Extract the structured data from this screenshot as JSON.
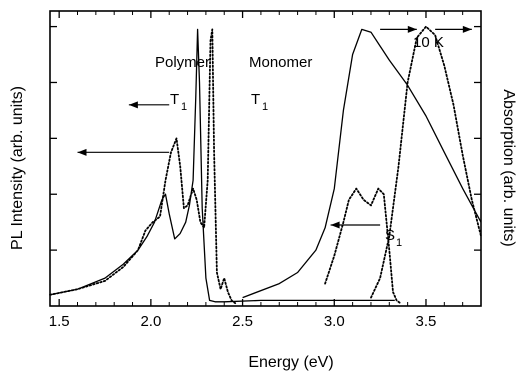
{
  "chart_data": {
    "type": "line",
    "title": "",
    "xlabel": "Energy (eV)",
    "ylabel_left": "PL Intensity (arb. units)",
    "ylabel_right": "Absorption (arb. units)",
    "xlim": [
      1.45,
      3.8
    ],
    "ylim": [
      0,
      1.02
    ],
    "x_ticks": [
      1.5,
      2.0,
      2.5,
      3.0,
      3.5
    ],
    "x_tick_labels": [
      "1.5",
      "2.0",
      "2.5",
      "3.0",
      "3.5"
    ],
    "grid": false,
    "series": [
      {
        "name": "Polymer",
        "role": "PL",
        "style": "solid",
        "x": [
          1.45,
          1.6,
          1.75,
          1.85,
          1.93,
          1.98,
          2.02,
          2.06,
          2.08,
          2.1,
          2.13,
          2.16,
          2.19,
          2.21,
          2.23,
          2.245,
          2.255,
          2.265,
          2.28,
          2.3,
          2.32,
          2.35,
          2.4,
          2.6,
          2.8,
          3.0,
          3.2,
          3.33
        ],
        "y": [
          0.04,
          0.06,
          0.1,
          0.15,
          0.2,
          0.25,
          0.3,
          0.38,
          0.4,
          0.33,
          0.24,
          0.26,
          0.3,
          0.36,
          0.45,
          0.75,
          0.99,
          0.8,
          0.35,
          0.1,
          0.02,
          0.015,
          0.015,
          0.02,
          0.02,
          0.02,
          0.02,
          0.02
        ]
      },
      {
        "name": "Monomer",
        "role": "PL",
        "style": "dotted",
        "x": [
          1.45,
          1.6,
          1.75,
          1.85,
          1.93,
          1.97,
          2.01,
          2.05,
          2.08,
          2.11,
          2.14,
          2.16,
          2.18,
          2.2,
          2.23,
          2.25,
          2.27,
          2.29,
          2.31,
          2.325,
          2.335,
          2.345,
          2.36,
          2.38,
          2.4,
          2.42,
          2.44,
          2.46
        ],
        "y": [
          0.04,
          0.06,
          0.09,
          0.14,
          0.2,
          0.27,
          0.3,
          0.32,
          0.45,
          0.55,
          0.6,
          0.5,
          0.35,
          0.36,
          0.42,
          0.38,
          0.3,
          0.28,
          0.45,
          0.95,
          0.99,
          0.55,
          0.12,
          0.06,
          0.1,
          0.05,
          0.02,
          0.01
        ]
      },
      {
        "name": "Polymer",
        "role": "Absorption",
        "style": "solid",
        "x": [
          2.5,
          2.7,
          2.8,
          2.9,
          2.95,
          3.0,
          3.05,
          3.1,
          3.15,
          3.2,
          3.25,
          3.3,
          3.4,
          3.5,
          3.6,
          3.7,
          3.8
        ],
        "y": [
          0.03,
          0.08,
          0.12,
          0.2,
          0.28,
          0.42,
          0.7,
          0.9,
          0.99,
          0.98,
          0.93,
          0.88,
          0.79,
          0.68,
          0.55,
          0.42,
          0.3
        ]
      },
      {
        "name": "Monomer",
        "role": "PL S1",
        "style": "dotted",
        "x": [
          2.95,
          3.0,
          3.05,
          3.08,
          3.12,
          3.16,
          3.2,
          3.24,
          3.27,
          3.3,
          3.32,
          3.34,
          3.36
        ],
        "y": [
          0.08,
          0.18,
          0.3,
          0.38,
          0.42,
          0.38,
          0.36,
          0.42,
          0.4,
          0.2,
          0.05,
          0.02,
          0.01
        ]
      },
      {
        "name": "Monomer",
        "role": "Absorption",
        "style": "dotted",
        "x": [
          3.2,
          3.25,
          3.3,
          3.35,
          3.4,
          3.45,
          3.5,
          3.55,
          3.6,
          3.65,
          3.7,
          3.75,
          3.8
        ],
        "y": [
          0.03,
          0.1,
          0.25,
          0.5,
          0.8,
          0.96,
          1.0,
          0.97,
          0.86,
          0.72,
          0.54,
          0.38,
          0.25
        ]
      }
    ],
    "annotations": {
      "polymer_label": "Polymer",
      "monomer_label": "Monomer",
      "t1_main": "T",
      "t1_sub": "1",
      "s1_main": "S",
      "s1_sub": "1",
      "temperature": "10 K"
    },
    "arrows": [
      {
        "from_x": 2.1,
        "to_x": 1.88,
        "y": 0.72,
        "direction": "left"
      },
      {
        "from_x": 2.1,
        "to_x": 1.6,
        "y": 0.55,
        "direction": "left"
      },
      {
        "from_x": 3.25,
        "to_x": 2.98,
        "y": 0.29,
        "direction": "left"
      },
      {
        "from_x": 3.25,
        "to_x": 3.45,
        "y": 0.99,
        "direction": "right"
      },
      {
        "from_x": 3.55,
        "to_x": 3.75,
        "y": 0.99,
        "direction": "right"
      }
    ]
  }
}
